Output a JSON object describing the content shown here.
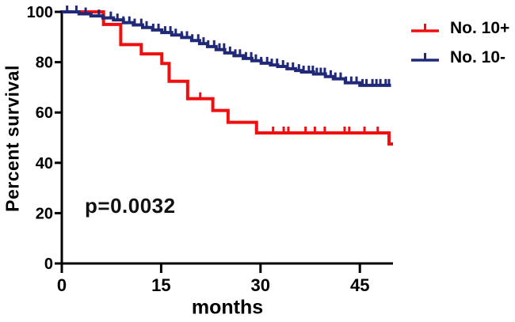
{
  "figure": {
    "background_color": "#ffffff",
    "axis_color": "#000000",
    "annotation_text": "p=0.0032"
  },
  "chart_data": {
    "type": "line",
    "subtype": "kaplan-meier-survival-step",
    "title": "",
    "xlabel": "months",
    "ylabel": "Percent survival",
    "xlim": [
      0,
      50
    ],
    "ylim": [
      0,
      100
    ],
    "xticks": [
      0,
      15,
      30,
      45
    ],
    "yticks": [
      0,
      20,
      40,
      60,
      80,
      100
    ],
    "grid": false,
    "legend_position": "outside-top-right",
    "annotation": {
      "text": "p=0.0032"
    },
    "series": [
      {
        "name": "No. 10+",
        "color": "#f10e0e",
        "start": [
          0,
          100
        ],
        "steps": [
          [
            6.3,
            95
          ],
          [
            8.9,
            87
          ],
          [
            12.0,
            83.3
          ],
          [
            15.1,
            79.5
          ],
          [
            16.2,
            72.4
          ],
          [
            19.0,
            65.5
          ],
          [
            22.8,
            60.8
          ],
          [
            25.1,
            56.1
          ],
          [
            29.4,
            51.9
          ],
          [
            49.4,
            47.5
          ]
        ],
        "end_month": 50.0,
        "censor_ticks_months": [
          20.9,
          31.9,
          33.5,
          34.2,
          36.8,
          38.2,
          39.7,
          42.7,
          43.4,
          45.7,
          47.7
        ]
      },
      {
        "name": "No. 10-",
        "color": "#202878",
        "start": [
          0,
          100
        ],
        "steps": [
          [
            2.6,
            99.2
          ],
          [
            4.4,
            98.4
          ],
          [
            6.2,
            97.6
          ],
          [
            7.8,
            96.8
          ],
          [
            9.3,
            95.7
          ],
          [
            10.8,
            94.8
          ],
          [
            12.2,
            93.8
          ],
          [
            13.7,
            92.8
          ],
          [
            15.1,
            91.8
          ],
          [
            16.6,
            90.8
          ],
          [
            18.1,
            89.8
          ],
          [
            19.6,
            88.6
          ],
          [
            20.8,
            87.4
          ],
          [
            22.0,
            86.2
          ],
          [
            23.3,
            85.0
          ],
          [
            24.6,
            83.7
          ],
          [
            26.0,
            82.6
          ],
          [
            27.4,
            81.5
          ],
          [
            28.7,
            80.6
          ],
          [
            30.1,
            79.6
          ],
          [
            31.5,
            78.9
          ],
          [
            32.6,
            78.3
          ],
          [
            34.0,
            77.4
          ],
          [
            35.3,
            76.7
          ],
          [
            36.2,
            76.1
          ],
          [
            38.0,
            75.3
          ],
          [
            39.8,
            74.3
          ],
          [
            41.0,
            73.4
          ],
          [
            42.8,
            71.8
          ],
          [
            45.0,
            70.8
          ]
        ],
        "end_month": 49.7,
        "censor_ticks_months": [
          0.8,
          2.2,
          3.6,
          5.6,
          7.4,
          8.4,
          9.3,
          10.2,
          11.0,
          12.0,
          12.8,
          13.8,
          14.6,
          15.6,
          16.4,
          17.2,
          18.1,
          18.9,
          19.7,
          20.6,
          21.4,
          22.1,
          23.0,
          23.8,
          24.5,
          25.4,
          26.2,
          26.9,
          27.8,
          28.6,
          29.3,
          30.1,
          31.0,
          31.7,
          32.5,
          33.4,
          34.1,
          34.9,
          35.8,
          36.5,
          37.3,
          37.9,
          38.5,
          39.1,
          39.7,
          40.6,
          41.3,
          42.1,
          42.9,
          43.7,
          44.5,
          45.4,
          46.0,
          46.9,
          47.5,
          48.1,
          48.9,
          49.4
        ]
      }
    ]
  }
}
